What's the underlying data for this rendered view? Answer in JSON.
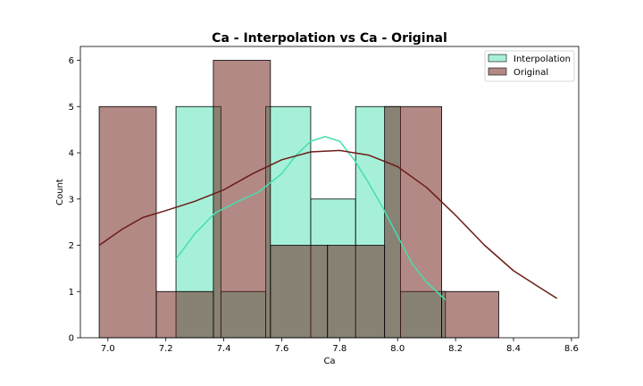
{
  "chart_data": {
    "type": "bar",
    "title": "Ca - Interpolation vs Ca - Original",
    "xlabel": "Ca",
    "ylabel": "Count",
    "xlim": [
      6.905,
      8.625
    ],
    "ylim": [
      0,
      6.3
    ],
    "x_ticks": [
      "7.0",
      "7.2",
      "7.4",
      "7.6",
      "7.8",
      "8.0",
      "8.2",
      "8.4",
      "8.6"
    ],
    "y_ticks": [
      "0",
      "1",
      "2",
      "3",
      "4",
      "5",
      "6"
    ],
    "legend_position": "top-right",
    "grid": false,
    "series": [
      {
        "name": "Interpolation",
        "color": "#44e0b0",
        "fill_opacity": 0.48,
        "bins": [
          {
            "x0": 7.235,
            "x1": 7.39,
            "count": 5
          },
          {
            "x0": 7.39,
            "x1": 7.545,
            "count": 1
          },
          {
            "x0": 7.545,
            "x1": 7.7,
            "count": 5
          },
          {
            "x0": 7.7,
            "x1": 7.855,
            "count": 3
          },
          {
            "x0": 7.855,
            "x1": 8.01,
            "count": 5
          },
          {
            "x0": 8.01,
            "x1": 8.165,
            "count": 1
          }
        ],
        "kde": [
          [
            7.235,
            1.7
          ],
          [
            7.3,
            2.25
          ],
          [
            7.37,
            2.7
          ],
          [
            7.45,
            2.95
          ],
          [
            7.52,
            3.15
          ],
          [
            7.6,
            3.55
          ],
          [
            7.65,
            3.95
          ],
          [
            7.7,
            4.25
          ],
          [
            7.75,
            4.35
          ],
          [
            7.8,
            4.25
          ],
          [
            7.85,
            3.85
          ],
          [
            7.9,
            3.35
          ],
          [
            7.95,
            2.8
          ],
          [
            8.0,
            2.2
          ],
          [
            8.05,
            1.6
          ],
          [
            8.1,
            1.2
          ],
          [
            8.165,
            0.82
          ]
        ]
      },
      {
        "name": "Original",
        "color": "#6b1d16",
        "fill_opacity": 0.52,
        "bins": [
          {
            "x0": 6.97,
            "x1": 7.167,
            "count": 5
          },
          {
            "x0": 7.167,
            "x1": 7.364,
            "count": 1
          },
          {
            "x0": 7.364,
            "x1": 7.561,
            "count": 6
          },
          {
            "x0": 7.561,
            "x1": 7.758,
            "count": 2
          },
          {
            "x0": 7.758,
            "x1": 7.955,
            "count": 2
          },
          {
            "x0": 7.955,
            "x1": 8.152,
            "count": 5
          },
          {
            "x0": 8.152,
            "x1": 8.349,
            "count": 1
          }
        ],
        "kde": [
          [
            6.97,
            2.0
          ],
          [
            7.05,
            2.35
          ],
          [
            7.12,
            2.6
          ],
          [
            7.2,
            2.75
          ],
          [
            7.3,
            2.95
          ],
          [
            7.4,
            3.2
          ],
          [
            7.5,
            3.55
          ],
          [
            7.6,
            3.85
          ],
          [
            7.7,
            4.02
          ],
          [
            7.8,
            4.05
          ],
          [
            7.9,
            3.95
          ],
          [
            8.0,
            3.7
          ],
          [
            8.1,
            3.25
          ],
          [
            8.2,
            2.65
          ],
          [
            8.3,
            2.0
          ],
          [
            8.4,
            1.45
          ],
          [
            8.5,
            1.05
          ],
          [
            8.55,
            0.85
          ]
        ]
      }
    ]
  }
}
